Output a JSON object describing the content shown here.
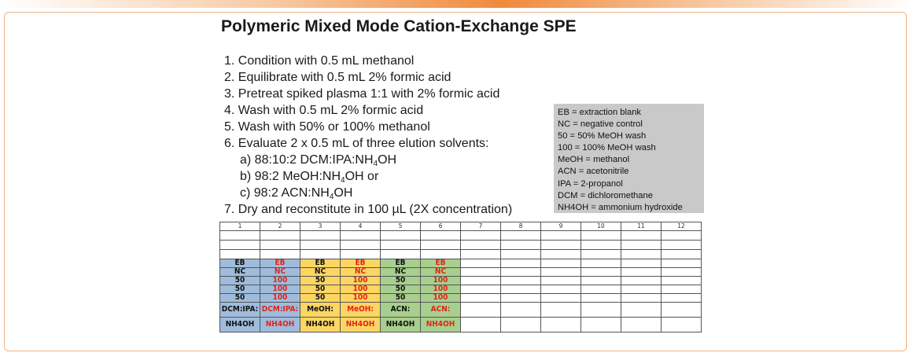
{
  "title": "Polymeric Mixed Mode Cation-Exchange SPE",
  "steps": [
    {
      "text": "1. Condition with 0.5 mL methanol"
    },
    {
      "text": "2. Equilibrate with 0.5 mL 2% formic acid"
    },
    {
      "text": "3. Pretreat spiked plasma 1:1 with 2% formic acid"
    },
    {
      "text": "4. Wash with 0.5 mL 2% formic acid"
    },
    {
      "text": "5. Wash with 50% or 100% methanol"
    },
    {
      "text": "6. Evaluate 2 x 0.5 mL of three elution solvents:"
    },
    {
      "pre": "a) 88:10:2 DCM:IPA:NH",
      "sub": "4",
      "post": "OH"
    },
    {
      "pre": "b) 98:2 MeOH:NH",
      "sub": "4",
      "post": "OH or"
    },
    {
      "pre": "c) 98:2 ACN:NH",
      "sub": "4",
      "post": "OH"
    },
    {
      "text": "7. Dry and reconstitute in 100 µL (2X concentration)"
    }
  ],
  "legend": [
    "EB = extraction blank",
    "NC = negative control",
    "50 = 50% MeOH wash",
    "100 = 100% MeOH wash",
    "MeOH = methanol",
    "ACN = acetonitrile",
    "IPA = 2-propanol",
    "DCM = dichloromethane",
    "NH4OH = ammonium hydroxide"
  ],
  "plate": {
    "columns": [
      "1",
      "2",
      "3",
      "4",
      "5",
      "6",
      "7",
      "8",
      "9",
      "10",
      "11",
      "12"
    ],
    "sample_rows": [
      [
        "EB",
        "EB",
        "EB",
        "EB",
        "EB",
        "EB"
      ],
      [
        "NC",
        "NC",
        "NC",
        "NC",
        "NC",
        "NC"
      ],
      [
        "50",
        "100",
        "50",
        "100",
        "50",
        "100"
      ],
      [
        "50",
        "100",
        "50",
        "100",
        "50",
        "100"
      ],
      [
        "50",
        "100",
        "50",
        "100",
        "50",
        "100"
      ]
    ],
    "solvent_row_1": [
      "DCM:IPA:",
      "DCM:IPA:",
      "MeOH:",
      "MeOH:",
      "ACN:",
      "ACN:"
    ],
    "solvent_row_2": [
      "NH4OH",
      "NH4OH",
      "NH4OH",
      "NH4OH",
      "NH4OH",
      "NH4OH"
    ],
    "column_fill": [
      "#9fbcdc",
      "#9fbcdc",
      "#fcd663",
      "#fcd663",
      "#a8cf8e",
      "#a8cf8e"
    ],
    "text_colors": {
      "wash50": "#111111",
      "wash100": "#e0241b"
    }
  }
}
